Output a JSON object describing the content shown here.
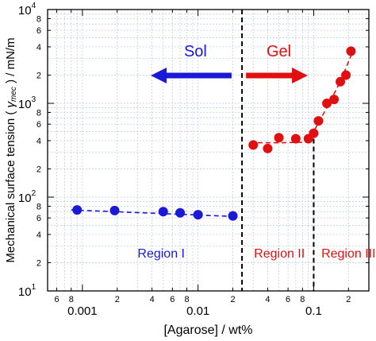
{
  "chart_data": {
    "type": "scatter",
    "xlabel": "[Agarose] / wt%",
    "ylabel_pre": "Mechanical surface tension ( ",
    "ylabel_sym": "γ",
    "ylabel_sub": "mec",
    "ylabel_post": " ) / mN/m",
    "x_scale": "log",
    "y_scale": "log",
    "xlim": [
      0.0005,
      0.3
    ],
    "ylim": [
      10,
      10000
    ],
    "grid": true,
    "x_ticks": {
      "major": [
        {
          "value": 0.001,
          "label": "0.001"
        },
        {
          "value": 0.01,
          "label": "0.01"
        },
        {
          "value": 0.1,
          "label": "0.1"
        }
      ],
      "minor": [
        {
          "value": 0.0006,
          "label": "6"
        },
        {
          "value": 0.0008,
          "label": "8"
        },
        {
          "value": 0.002,
          "label": "2"
        },
        {
          "value": 0.004,
          "label": "4"
        },
        {
          "value": 0.006,
          "label": "6"
        },
        {
          "value": 0.008,
          "label": "8"
        },
        {
          "value": 0.02,
          "label": "2"
        },
        {
          "value": 0.04,
          "label": "4"
        },
        {
          "value": 0.06,
          "label": "6"
        },
        {
          "value": 0.08,
          "label": "8"
        },
        {
          "value": 0.2,
          "label": "2"
        }
      ]
    },
    "y_ticks": {
      "major": [
        {
          "value": 10,
          "base": "10",
          "exp": "1"
        },
        {
          "value": 100,
          "base": "10",
          "exp": "2"
        },
        {
          "value": 1000,
          "base": "10",
          "exp": "3"
        },
        {
          "value": 10000,
          "base": "10",
          "exp": "4"
        }
      ],
      "minor": [
        {
          "value": 20,
          "label": "2"
        },
        {
          "value": 40,
          "label": "4"
        },
        {
          "value": 60,
          "label": "6"
        },
        {
          "value": 80,
          "label": "8"
        },
        {
          "value": 200,
          "label": "2"
        },
        {
          "value": 400,
          "label": "4"
        },
        {
          "value": 600,
          "label": "6"
        },
        {
          "value": 800,
          "label": "8"
        },
        {
          "value": 2000,
          "label": "2"
        },
        {
          "value": 4000,
          "label": "4"
        },
        {
          "value": 6000,
          "label": "6"
        },
        {
          "value": 8000,
          "label": "8"
        }
      ]
    },
    "series": [
      {
        "color": "#1a1ad6",
        "points": [
          {
            "x": 0.0009,
            "y": 73
          },
          {
            "x": 0.0019,
            "y": 72
          },
          {
            "x": 0.005,
            "y": 70
          },
          {
            "x": 0.007,
            "y": 68
          },
          {
            "x": 0.01,
            "y": 65
          },
          {
            "x": 0.02,
            "y": 63
          }
        ],
        "fit": [
          {
            "x": 0.0008,
            "y": 73
          },
          {
            "x": 0.022,
            "y": 62
          }
        ]
      },
      {
        "color": "#e01010",
        "points": [
          {
            "x": 0.03,
            "y": 360
          },
          {
            "x": 0.04,
            "y": 330
          },
          {
            "x": 0.05,
            "y": 430
          },
          {
            "x": 0.07,
            "y": 420
          },
          {
            "x": 0.09,
            "y": 420
          },
          {
            "x": 0.1,
            "y": 480
          },
          {
            "x": 0.11,
            "y": 650
          },
          {
            "x": 0.13,
            "y": 1000
          },
          {
            "x": 0.15,
            "y": 1100
          },
          {
            "x": 0.17,
            "y": 1700
          },
          {
            "x": 0.19,
            "y": 2000
          },
          {
            "x": 0.21,
            "y": 3600
          }
        ],
        "fit": [
          {
            "x": 0.028,
            "y": 380
          },
          {
            "x": 0.05,
            "y": 380
          },
          {
            "x": 0.085,
            "y": 385
          },
          {
            "x": 0.1,
            "y": 500
          },
          {
            "x": 0.13,
            "y": 900
          },
          {
            "x": 0.17,
            "y": 1700
          },
          {
            "x": 0.22,
            "y": 3700
          }
        ]
      }
    ],
    "boundaries": [
      0.024,
      0.1
    ],
    "annotations": [
      {
        "text": "Sol",
        "color": "#1a1ad6"
      },
      {
        "text": "Gel",
        "color": "#e01010"
      },
      {
        "text": "Region I",
        "color": "#1a1ad6"
      },
      {
        "text": "Region II",
        "color": "#e01010"
      },
      {
        "text": "Region III",
        "color": "#e01010"
      }
    ]
  }
}
